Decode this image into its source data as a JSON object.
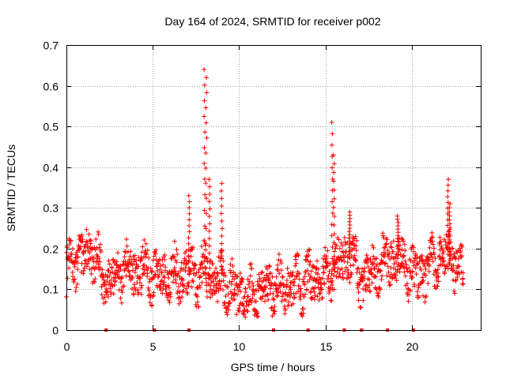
{
  "chart_data": {
    "type": "scatter",
    "title": "Day 164 of 2024, SRMTID for receiver p002",
    "xlabel": "GPS time / hours",
    "ylabel": "SRMTID / TECUs",
    "xlim": [
      0,
      24
    ],
    "ylim": [
      0,
      0.7
    ],
    "xticks": [
      0,
      5,
      10,
      15,
      20
    ],
    "xtick_labels": [
      "0",
      "5",
      "10",
      "15",
      "20"
    ],
    "yticks": [
      0,
      0.1,
      0.2,
      0.3,
      0.4,
      0.5,
      0.6,
      0.7
    ],
    "ytick_labels": [
      "0",
      "0.1",
      "0.2",
      "0.3",
      "0.4",
      "0.5",
      "0.6",
      "0.7"
    ],
    "grid": true,
    "marker": "+",
    "series_color": "#ff0000",
    "data_range_hours": [
      0,
      23
    ],
    "gap_markers_hours": [
      2.3,
      5.1,
      7.1,
      12.0,
      14.0,
      16.1,
      17.1,
      18.6,
      20.1
    ],
    "profile": [
      [
        0.0,
        0.15
      ],
      [
        0.5,
        0.17
      ],
      [
        1.0,
        0.18
      ],
      [
        1.5,
        0.2
      ],
      [
        2.0,
        0.14
      ],
      [
        2.5,
        0.12
      ],
      [
        3.0,
        0.14
      ],
      [
        3.5,
        0.15
      ],
      [
        4.0,
        0.14
      ],
      [
        4.5,
        0.15
      ],
      [
        5.0,
        0.14
      ],
      [
        5.5,
        0.13
      ],
      [
        6.0,
        0.13
      ],
      [
        6.5,
        0.14
      ],
      [
        7.0,
        0.14
      ],
      [
        7.5,
        0.13
      ],
      [
        8.0,
        0.14
      ],
      [
        8.5,
        0.13
      ],
      [
        9.0,
        0.12
      ],
      [
        9.5,
        0.1
      ],
      [
        10.0,
        0.09
      ],
      [
        10.5,
        0.08
      ],
      [
        11.0,
        0.09
      ],
      [
        11.5,
        0.1
      ],
      [
        12.0,
        0.11
      ],
      [
        12.5,
        0.1
      ],
      [
        13.0,
        0.11
      ],
      [
        13.5,
        0.12
      ],
      [
        14.0,
        0.12
      ],
      [
        14.5,
        0.13
      ],
      [
        15.0,
        0.14
      ],
      [
        15.5,
        0.15
      ],
      [
        16.0,
        0.17
      ],
      [
        16.5,
        0.19
      ],
      [
        17.0,
        0.12
      ],
      [
        17.5,
        0.13
      ],
      [
        18.0,
        0.15
      ],
      [
        18.5,
        0.17
      ],
      [
        19.0,
        0.18
      ],
      [
        19.5,
        0.17
      ],
      [
        20.0,
        0.14
      ],
      [
        20.5,
        0.13
      ],
      [
        21.0,
        0.15
      ],
      [
        21.5,
        0.17
      ],
      [
        22.0,
        0.19
      ],
      [
        22.5,
        0.17
      ],
      [
        23.0,
        0.13
      ]
    ],
    "spikes": [
      {
        "x": 7.1,
        "peak": 0.33
      },
      {
        "x": 8.0,
        "peak": 0.64
      },
      {
        "x": 8.1,
        "peak": 0.62
      },
      {
        "x": 8.3,
        "peak": 0.37
      },
      {
        "x": 9.0,
        "peak": 0.36
      },
      {
        "x": 15.4,
        "peak": 0.51
      },
      {
        "x": 15.5,
        "peak": 0.43
      },
      {
        "x": 16.4,
        "peak": 0.29
      },
      {
        "x": 19.2,
        "peak": 0.28
      },
      {
        "x": 22.1,
        "peak": 0.37
      },
      {
        "x": 22.2,
        "peak": 0.31
      }
    ]
  }
}
